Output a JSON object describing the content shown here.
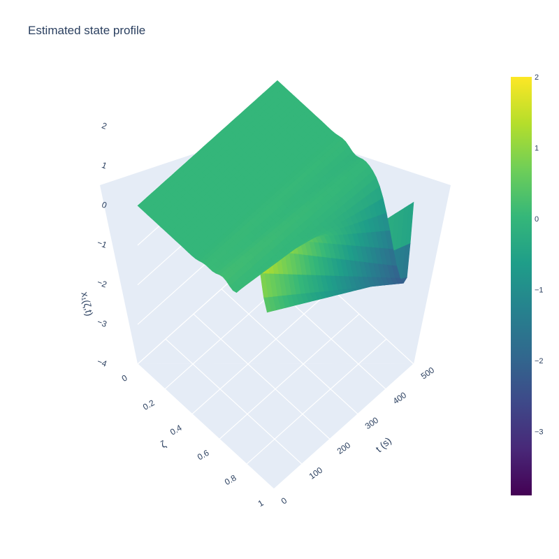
{
  "chart_data": {
    "type": "surface",
    "title": "Estimated state profile",
    "colorscale": "viridis",
    "colorscale_stops": [
      "#440154",
      "#482878",
      "#3e4989",
      "#31688e",
      "#26828e",
      "#1f9e89",
      "#35b779",
      "#6ece58",
      "#b5de2b",
      "#fde725"
    ],
    "x_axis": {
      "label": "ζ",
      "range": [
        0,
        1
      ],
      "ticks": [
        "0",
        "0.2",
        "0.4",
        "0.6",
        "0.8",
        "1"
      ]
    },
    "y_axis": {
      "label": "t (s)",
      "range": [
        0,
        500
      ],
      "ticks": [
        "0",
        "100",
        "200",
        "300",
        "400",
        "500"
      ]
    },
    "z_axis": {
      "label": "x₁(ζ,t)",
      "range": [
        -4,
        2
      ],
      "ticks": [
        "−4",
        "−3",
        "−2",
        "−1",
        "0",
        "1",
        "2"
      ]
    },
    "colorbar": {
      "range": [
        -3.9,
        2
      ],
      "ticks": [
        "2",
        "1",
        "0",
        "−1",
        "−2",
        "−3"
      ]
    },
    "profile_at_t0": {
      "zeta": [
        0.5,
        0.6,
        0.7,
        0.75,
        0.8,
        0.85,
        0.9,
        0.95,
        1.0
      ],
      "x1": [
        0.0,
        0.1,
        0.5,
        1.0,
        1.6,
        1.9,
        1.3,
        0.6,
        1.0
      ]
    },
    "profile_at_t500": {
      "zeta": [
        0.5,
        0.6,
        0.7,
        0.8,
        0.9,
        1.0
      ],
      "x1": [
        0.0,
        -0.1,
        -0.6,
        -1.3,
        -2.0,
        -0.8
      ]
    },
    "grid": true,
    "background": "#e5ecf6"
  }
}
